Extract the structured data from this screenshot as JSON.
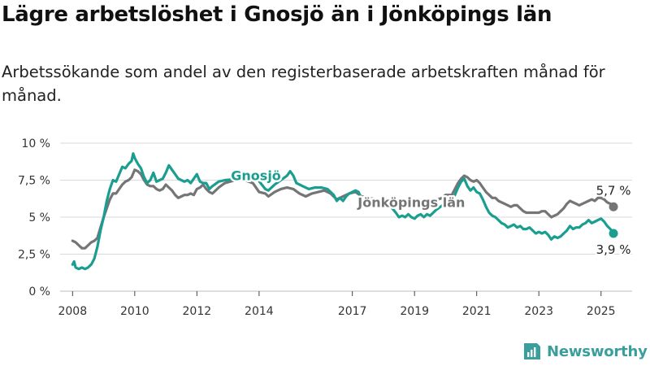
{
  "title": "Lägre arbetslöshet i Gnosjö än i Jönköpings län",
  "subtitle": "Arbetssökande som andel av den registerbaserade arbetskraften månad för månad.",
  "brand": {
    "name": "Newsworthy",
    "icon": "newsworthy-logo-icon"
  },
  "colors": {
    "gnosjo": "#1a9e8f",
    "lan": "#757578",
    "grid": "#d9d9d9",
    "brand": "#3a9e9c"
  },
  "chart_data": {
    "type": "line",
    "title": "Lägre arbetslöshet i Gnosjö än i Jönköpings län",
    "xlabel": "",
    "ylabel": "",
    "xlim": [
      2007.6,
      2026.0
    ],
    "ylim": [
      0,
      10
    ],
    "yticks": [
      0,
      2.5,
      5,
      7.5,
      10
    ],
    "ytick_labels": [
      "0 %",
      "2,5 %",
      "5 %",
      "7,5 %",
      "10 %"
    ],
    "xticks": [
      2008,
      2010,
      2012,
      2014,
      2017,
      2019,
      2021,
      2023,
      2025
    ],
    "xtick_labels": [
      "2008",
      "2010",
      "2012",
      "2014",
      "2017",
      "2019",
      "2021",
      "2023",
      "2025"
    ],
    "grid": true,
    "legend": "inline labels",
    "series": [
      {
        "name": "Jönköpings län",
        "color": "#757578",
        "end_label": "5,7 %",
        "points": [
          [
            2008.0,
            3.4
          ],
          [
            2008.1,
            3.3
          ],
          [
            2008.2,
            3.1
          ],
          [
            2008.3,
            2.9
          ],
          [
            2008.4,
            2.9
          ],
          [
            2008.5,
            3.1
          ],
          [
            2008.6,
            3.3
          ],
          [
            2008.7,
            3.4
          ],
          [
            2008.8,
            3.6
          ],
          [
            2008.9,
            4.3
          ],
          [
            2009.0,
            5.0
          ],
          [
            2009.1,
            5.6
          ],
          [
            2009.2,
            6.2
          ],
          [
            2009.3,
            6.6
          ],
          [
            2009.4,
            6.6
          ],
          [
            2009.5,
            6.9
          ],
          [
            2009.6,
            7.2
          ],
          [
            2009.7,
            7.4
          ],
          [
            2009.8,
            7.5
          ],
          [
            2009.9,
            7.7
          ],
          [
            2010.0,
            8.2
          ],
          [
            2010.1,
            8.1
          ],
          [
            2010.2,
            7.9
          ],
          [
            2010.3,
            7.5
          ],
          [
            2010.4,
            7.2
          ],
          [
            2010.5,
            7.1
          ],
          [
            2010.6,
            7.1
          ],
          [
            2010.7,
            6.9
          ],
          [
            2010.8,
            6.8
          ],
          [
            2010.9,
            6.9
          ],
          [
            2011.0,
            7.2
          ],
          [
            2011.1,
            7.0
          ],
          [
            2011.2,
            6.8
          ],
          [
            2011.3,
            6.5
          ],
          [
            2011.4,
            6.3
          ],
          [
            2011.5,
            6.4
          ],
          [
            2011.6,
            6.5
          ],
          [
            2011.7,
            6.5
          ],
          [
            2011.8,
            6.6
          ],
          [
            2011.9,
            6.5
          ],
          [
            2012.0,
            6.9
          ],
          [
            2012.1,
            7.0
          ],
          [
            2012.2,
            7.2
          ],
          [
            2012.3,
            6.9
          ],
          [
            2012.4,
            6.7
          ],
          [
            2012.5,
            6.6
          ],
          [
            2012.7,
            7.0
          ],
          [
            2012.9,
            7.3
          ],
          [
            2013.4,
            7.6
          ],
          [
            2013.8,
            7.3
          ],
          [
            2014.0,
            6.7
          ],
          [
            2014.2,
            6.6
          ],
          [
            2014.3,
            6.4
          ],
          [
            2014.5,
            6.7
          ],
          [
            2014.7,
            6.9
          ],
          [
            2014.9,
            7.0
          ],
          [
            2015.1,
            6.9
          ],
          [
            2015.3,
            6.6
          ],
          [
            2015.5,
            6.4
          ],
          [
            2015.7,
            6.6
          ],
          [
            2015.9,
            6.7
          ],
          [
            2016.1,
            6.8
          ],
          [
            2016.3,
            6.6
          ],
          [
            2016.5,
            6.2
          ],
          [
            2016.7,
            6.4
          ],
          [
            2016.9,
            6.6
          ],
          [
            2017.1,
            6.7
          ],
          [
            2017.3,
            6.4
          ],
          [
            2018.2,
            6.0
          ],
          [
            2019.6,
            6.1
          ],
          [
            2019.9,
            6.3
          ],
          [
            2020.0,
            6.5
          ],
          [
            2020.2,
            6.5
          ],
          [
            2020.3,
            6.9
          ],
          [
            2020.4,
            7.3
          ],
          [
            2020.5,
            7.6
          ],
          [
            2020.6,
            7.8
          ],
          [
            2020.7,
            7.7
          ],
          [
            2020.8,
            7.5
          ],
          [
            2020.9,
            7.4
          ],
          [
            2021.0,
            7.5
          ],
          [
            2021.1,
            7.3
          ],
          [
            2021.2,
            7.0
          ],
          [
            2021.3,
            6.7
          ],
          [
            2021.4,
            6.5
          ],
          [
            2021.5,
            6.3
          ],
          [
            2021.6,
            6.3
          ],
          [
            2021.7,
            6.1
          ],
          [
            2021.8,
            6.0
          ],
          [
            2021.9,
            5.9
          ],
          [
            2022.0,
            5.8
          ],
          [
            2022.1,
            5.7
          ],
          [
            2022.2,
            5.8
          ],
          [
            2022.3,
            5.8
          ],
          [
            2022.4,
            5.6
          ],
          [
            2022.5,
            5.4
          ],
          [
            2022.6,
            5.3
          ],
          [
            2022.7,
            5.3
          ],
          [
            2022.8,
            5.3
          ],
          [
            2022.9,
            5.3
          ],
          [
            2023.0,
            5.3
          ],
          [
            2023.1,
            5.4
          ],
          [
            2023.2,
            5.4
          ],
          [
            2023.3,
            5.2
          ],
          [
            2023.4,
            5.0
          ],
          [
            2023.5,
            5.1
          ],
          [
            2023.6,
            5.2
          ],
          [
            2023.7,
            5.4
          ],
          [
            2023.8,
            5.6
          ],
          [
            2023.9,
            5.9
          ],
          [
            2024.0,
            6.1
          ],
          [
            2024.1,
            6.0
          ],
          [
            2024.2,
            5.9
          ],
          [
            2024.3,
            5.8
          ],
          [
            2024.4,
            5.9
          ],
          [
            2024.5,
            6.0
          ],
          [
            2024.6,
            6.1
          ],
          [
            2024.7,
            6.2
          ],
          [
            2024.8,
            6.1
          ],
          [
            2024.9,
            6.3
          ],
          [
            2025.0,
            6.3
          ],
          [
            2025.1,
            6.2
          ],
          [
            2025.2,
            6.0
          ],
          [
            2025.3,
            5.9
          ],
          [
            2025.4,
            5.7
          ]
        ]
      },
      {
        "name": "Gnosjö",
        "color": "#1a9e8f",
        "end_label": "3,9 %",
        "points": [
          [
            2008.0,
            1.8
          ],
          [
            2008.05,
            2.0
          ],
          [
            2008.1,
            1.6
          ],
          [
            2008.2,
            1.5
          ],
          [
            2008.3,
            1.6
          ],
          [
            2008.4,
            1.5
          ],
          [
            2008.5,
            1.6
          ],
          [
            2008.6,
            1.8
          ],
          [
            2008.7,
            2.2
          ],
          [
            2008.8,
            3.0
          ],
          [
            2008.9,
            4.1
          ],
          [
            2009.0,
            5.0
          ],
          [
            2009.1,
            6.1
          ],
          [
            2009.2,
            6.9
          ],
          [
            2009.3,
            7.5
          ],
          [
            2009.4,
            7.4
          ],
          [
            2009.5,
            7.9
          ],
          [
            2009.6,
            8.4
          ],
          [
            2009.7,
            8.3
          ],
          [
            2009.8,
            8.6
          ],
          [
            2009.9,
            8.8
          ],
          [
            2009.95,
            9.3
          ],
          [
            2010.0,
            9.0
          ],
          [
            2010.1,
            8.6
          ],
          [
            2010.2,
            8.3
          ],
          [
            2010.3,
            7.7
          ],
          [
            2010.4,
            7.3
          ],
          [
            2010.5,
            7.5
          ],
          [
            2010.6,
            8.0
          ],
          [
            2010.7,
            7.4
          ],
          [
            2010.8,
            7.5
          ],
          [
            2010.9,
            7.6
          ],
          [
            2011.0,
            8.0
          ],
          [
            2011.1,
            8.5
          ],
          [
            2011.2,
            8.2
          ],
          [
            2011.3,
            7.9
          ],
          [
            2011.4,
            7.6
          ],
          [
            2011.5,
            7.5
          ],
          [
            2011.6,
            7.4
          ],
          [
            2011.7,
            7.5
          ],
          [
            2011.8,
            7.3
          ],
          [
            2011.9,
            7.6
          ],
          [
            2012.0,
            7.9
          ],
          [
            2012.1,
            7.4
          ],
          [
            2012.2,
            7.3
          ],
          [
            2012.3,
            7.3
          ],
          [
            2012.4,
            6.9
          ],
          [
            2012.5,
            7.1
          ],
          [
            2012.7,
            7.4
          ],
          [
            2012.9,
            7.5
          ],
          [
            2013.9,
            7.7
          ],
          [
            2014.2,
            6.9
          ],
          [
            2014.3,
            6.8
          ],
          [
            2014.5,
            7.2
          ],
          [
            2014.7,
            7.5
          ],
          [
            2014.9,
            7.8
          ],
          [
            2015.0,
            8.1
          ],
          [
            2015.1,
            7.8
          ],
          [
            2015.2,
            7.3
          ],
          [
            2015.4,
            7.1
          ],
          [
            2015.6,
            6.9
          ],
          [
            2015.8,
            7.0
          ],
          [
            2016.0,
            7.0
          ],
          [
            2016.2,
            6.9
          ],
          [
            2016.4,
            6.5
          ],
          [
            2016.5,
            6.1
          ],
          [
            2016.6,
            6.3
          ],
          [
            2016.7,
            6.1
          ],
          [
            2016.8,
            6.4
          ],
          [
            2016.9,
            6.6
          ],
          [
            2017.1,
            6.8
          ],
          [
            2017.2,
            6.7
          ],
          [
            2017.3,
            6.2
          ],
          [
            2018.2,
            5.8
          ],
          [
            2018.4,
            5.3
          ],
          [
            2018.5,
            5.0
          ],
          [
            2018.6,
            5.1
          ],
          [
            2018.7,
            5.0
          ],
          [
            2018.8,
            5.2
          ],
          [
            2018.9,
            5.0
          ],
          [
            2019.0,
            4.9
          ],
          [
            2019.1,
            5.1
          ],
          [
            2019.2,
            5.2
          ],
          [
            2019.3,
            5.0
          ],
          [
            2019.4,
            5.2
          ],
          [
            2019.5,
            5.1
          ],
          [
            2019.7,
            5.5
          ],
          [
            2019.9,
            5.8
          ],
          [
            2020.0,
            5.9
          ],
          [
            2020.1,
            5.8
          ],
          [
            2020.2,
            6.0
          ],
          [
            2020.3,
            6.5
          ],
          [
            2020.4,
            7.0
          ],
          [
            2020.5,
            7.4
          ],
          [
            2020.6,
            7.6
          ],
          [
            2020.7,
            7.1
          ],
          [
            2020.8,
            6.8
          ],
          [
            2020.9,
            7.0
          ],
          [
            2021.0,
            6.7
          ],
          [
            2021.1,
            6.6
          ],
          [
            2021.2,
            6.2
          ],
          [
            2021.3,
            5.7
          ],
          [
            2021.4,
            5.3
          ],
          [
            2021.5,
            5.1
          ],
          [
            2021.6,
            5.0
          ],
          [
            2021.7,
            4.8
          ],
          [
            2021.8,
            4.6
          ],
          [
            2021.9,
            4.5
          ],
          [
            2022.0,
            4.3
          ],
          [
            2022.1,
            4.4
          ],
          [
            2022.2,
            4.5
          ],
          [
            2022.3,
            4.3
          ],
          [
            2022.4,
            4.4
          ],
          [
            2022.5,
            4.2
          ],
          [
            2022.6,
            4.2
          ],
          [
            2022.7,
            4.3
          ],
          [
            2022.8,
            4.1
          ],
          [
            2022.9,
            3.9
          ],
          [
            2023.0,
            4.0
          ],
          [
            2023.1,
            3.9
          ],
          [
            2023.2,
            4.0
          ],
          [
            2023.3,
            3.8
          ],
          [
            2023.4,
            3.5
          ],
          [
            2023.5,
            3.7
          ],
          [
            2023.6,
            3.6
          ],
          [
            2023.7,
            3.7
          ],
          [
            2023.8,
            3.9
          ],
          [
            2023.9,
            4.1
          ],
          [
            2024.0,
            4.4
          ],
          [
            2024.1,
            4.2
          ],
          [
            2024.2,
            4.3
          ],
          [
            2024.3,
            4.3
          ],
          [
            2024.4,
            4.5
          ],
          [
            2024.5,
            4.6
          ],
          [
            2024.6,
            4.8
          ],
          [
            2024.7,
            4.6
          ],
          [
            2024.8,
            4.7
          ],
          [
            2024.9,
            4.8
          ],
          [
            2025.0,
            4.9
          ],
          [
            2025.1,
            4.7
          ],
          [
            2025.2,
            4.4
          ],
          [
            2025.3,
            4.2
          ],
          [
            2025.4,
            3.9
          ]
        ]
      }
    ],
    "series_labels": [
      {
        "series": "Gnosjö",
        "text": "Gnosjö",
        "x": 2013.9,
        "y": 7.5
      },
      {
        "series": "Jönköpings län",
        "text": "Jönköpings län",
        "x": 2018.9,
        "y": 5.7
      }
    ]
  }
}
